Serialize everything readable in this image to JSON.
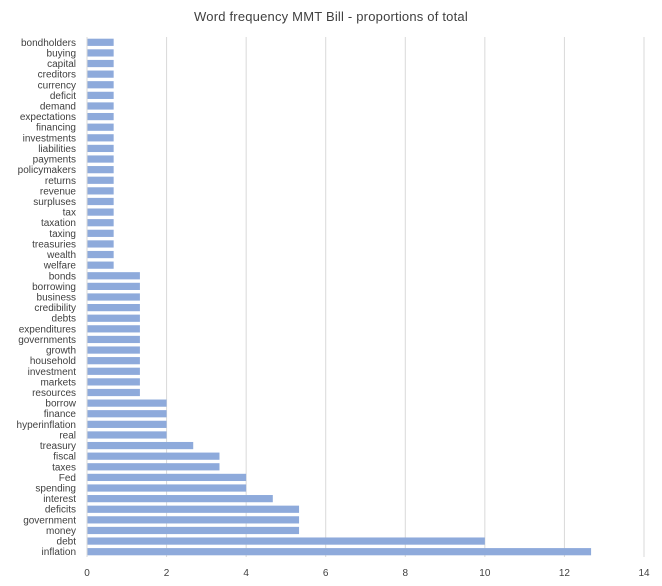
{
  "chart_data": {
    "type": "bar",
    "orientation": "horizontal",
    "title": "Word frequency  MMT Bill - proportions  of total",
    "xlabel": "",
    "ylabel": "",
    "xlim": [
      0,
      14
    ],
    "x_ticks": [
      0,
      2,
      4,
      6,
      8,
      10,
      12,
      14
    ],
    "grid": true,
    "legend": "none",
    "bar_color": "#8eaadb",
    "categories": [
      "bondholders",
      "buying",
      "capital",
      "creditors",
      "currency",
      "deficit",
      "demand",
      "expectations",
      "financing",
      "investments",
      "liabilities",
      "payments",
      "policymakers",
      "returns",
      "revenue",
      "surpluses",
      "tax",
      "taxation",
      "taxing",
      "treasuries",
      "wealth",
      "welfare",
      "bonds",
      "borrowing",
      "business",
      "credibility",
      "debts",
      "expenditures",
      "governments",
      "growth",
      "household",
      "investment",
      "markets",
      "resources",
      "borrow",
      "finance",
      "hyperinflation",
      "real",
      "treasury",
      "fiscal",
      "taxes",
      "Fed",
      "spending",
      "interest",
      "deficits",
      "government",
      "money",
      "debt",
      "inflation"
    ],
    "values": [
      0.67,
      0.67,
      0.67,
      0.67,
      0.67,
      0.67,
      0.67,
      0.67,
      0.67,
      0.67,
      0.67,
      0.67,
      0.67,
      0.67,
      0.67,
      0.67,
      0.67,
      0.67,
      0.67,
      0.67,
      0.67,
      0.67,
      1.33,
      1.33,
      1.33,
      1.33,
      1.33,
      1.33,
      1.33,
      1.33,
      1.33,
      1.33,
      1.33,
      1.33,
      2.0,
      2.0,
      2.0,
      2.0,
      2.67,
      3.33,
      3.33,
      4.0,
      4.0,
      4.67,
      5.33,
      5.33,
      5.33,
      10.0,
      12.67
    ]
  }
}
